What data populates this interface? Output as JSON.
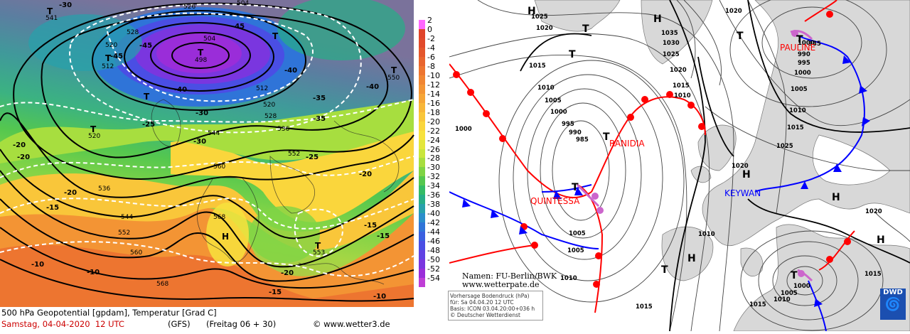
{
  "left_map": {
    "title": "500 hPa Geopotential [gpdam], Temperatur [Grad C]",
    "date_label": "Samstag, 04-04-2020  12 UTC",
    "model": "(GFS)",
    "run": "(Freitag 06 + 30)",
    "copyright": "© www.wetter3.de",
    "legend_values": [
      "2",
      "0",
      "-2",
      "-4",
      "-6",
      "-8",
      "-10",
      "-12",
      "-14",
      "-16",
      "-18",
      "-20",
      "-22",
      "-24",
      "-26",
      "-28",
      "-30",
      "-32",
      "-34",
      "-36",
      "-38",
      "-40",
      "-42",
      "-44",
      "-46",
      "-48",
      "-50",
      "-52",
      "-54"
    ],
    "legend_colors": [
      "#ff66ff",
      "#e0442a",
      "#e14a2b",
      "#e4562c",
      "#e8652e",
      "#ed7530",
      "#f08532",
      "#f39434",
      "#f6a536",
      "#f8b638",
      "#f9c63a",
      "#fad63c",
      "#f7e23d",
      "#e3e63c",
      "#c9e63c",
      "#a7de3f",
      "#7fd445",
      "#54c74f",
      "#33bb65",
      "#26ae86",
      "#27a1ab",
      "#2a8ecb",
      "#2f74d8",
      "#3a5fe0",
      "#4a4ee4",
      "#6142e3",
      "#7a36df",
      "#9a2dd9",
      "#bf3ed6"
    ],
    "height_labels": [
      "504",
      "526",
      "528",
      "520",
      "512",
      "498",
      "504",
      "512",
      "520",
      "528",
      "536",
      "544",
      "552",
      "560",
      "568",
      "560",
      "568",
      "552",
      "544",
      "536",
      "520",
      "541",
      "553",
      "550"
    ],
    "temp_labels": [
      "-30",
      "-45",
      "-45",
      "-45",
      "-40",
      "-40",
      "-35",
      "-30",
      "-25",
      "-20",
      "-20",
      "-15",
      "-10",
      "-15",
      "-10",
      "-20",
      "-25",
      "-20",
      "-15",
      "-20",
      "-15",
      "-10",
      "-35",
      "-30",
      "-40"
    ],
    "lows": [
      "T",
      "T",
      "T",
      "T",
      "T",
      "T",
      "T",
      "T"
    ],
    "highs": [
      "H"
    ]
  },
  "right_map": {
    "isobar_labels": [
      "1025",
      "1020",
      "1035",
      "1030",
      "1025",
      "1020",
      "1015",
      "1010",
      "1015",
      "1010",
      "1005",
      "1000",
      "995",
      "990",
      "985",
      "1000",
      "1005",
      "1010",
      "1005",
      "1000",
      "990",
      "995",
      "1000",
      "1005",
      "1010",
      "1015",
      "1020",
      "1025",
      "1020",
      "1015",
      "1010",
      "1005",
      "1000",
      "1015",
      "1020",
      "1015",
      "1010",
      "985"
    ],
    "fronts": [
      "RANIDIA",
      "QUINTESSA",
      "PAULINE",
      "KEYWAN"
    ],
    "pressure_systems": [
      "H",
      "H",
      "H",
      "H",
      "H",
      "H",
      "T",
      "T",
      "T",
      "T",
      "T",
      "T",
      "T",
      "T"
    ],
    "credit_line1": "Namen: FU-Berlin/BWK",
    "credit_line2": "www.wetterpate.de",
    "info_line1": "Vorhersage Bodendruck (hPa)",
    "info_line2": "für: Sa 04.04.20  12 UTC",
    "info_line3": "Basis: ICON  03.04.20:00+036 h",
    "info_line4": "© Deutscher Wetterdienst",
    "logo_text": "DWD",
    "colors": {
      "warm_front": "#ff0000",
      "cold_front": "#0000ff",
      "occlusion": "#cc66cc",
      "land": "#d8d8d8",
      "sea": "#ffffff"
    }
  }
}
